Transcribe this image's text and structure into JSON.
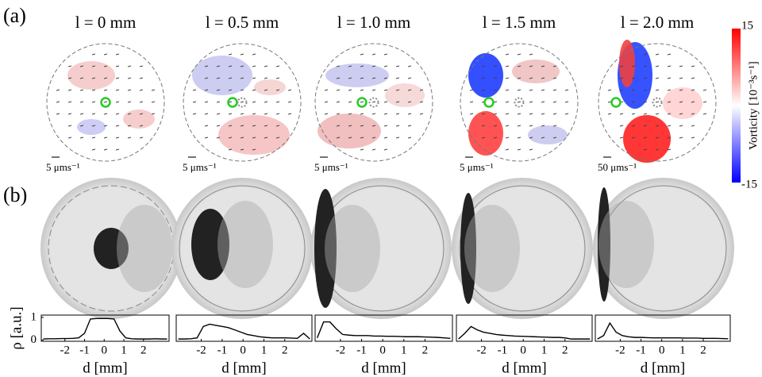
{
  "panel_labels": [
    "(a)",
    "(b)"
  ],
  "vorticity_maps": [
    {
      "title": "l = 0 mm",
      "scale_label": "5 μms⁻¹"
    },
    {
      "title": "l = 0.5 mm",
      "scale_label": "5 μms⁻¹"
    },
    {
      "title": "l = 1.0 mm",
      "scale_label": "5 μms⁻¹"
    },
    {
      "title": "l = 1.5 mm",
      "scale_label": "5 μms⁻¹"
    },
    {
      "title": "l = 2.0 mm",
      "scale_label": "50 μms⁻¹"
    }
  ],
  "colorbar": {
    "label": "Vorticity [10⁻³s⁻¹]",
    "lim": [
      -15,
      15
    ],
    "ticks": [
      15,
      -15
    ]
  },
  "chart_data": [
    {
      "type": "line",
      "xlabel": "d [mm]",
      "ylabel": "ρ [a.u.]",
      "x": [
        -3.1,
        -2.8,
        -2.5,
        -2.2,
        -1.9,
        -1.6,
        -1.3,
        -1.0,
        -0.7,
        -0.4,
        -0.1,
        0.2,
        0.5,
        0.8,
        1.1,
        1.4,
        1.7,
        2.0,
        2.3,
        2.6,
        2.9,
        3.2
      ],
      "series": [
        {
          "color": "#000000",
          "values": [
            0.05,
            0.06,
            0.06,
            0.07,
            0.07,
            0.08,
            0.1,
            0.3,
            0.93,
            0.95,
            0.95,
            0.95,
            0.93,
            0.4,
            0.1,
            0.06,
            0.05,
            0.05,
            0.05,
            0.06,
            0.05,
            0.05
          ]
        }
      ],
      "xlim": [
        -3.2,
        3.3
      ],
      "ylim": [
        -0.05,
        1.1
      ],
      "xticks": [
        -2,
        -1,
        0,
        1,
        2
      ],
      "yticks": [
        0,
        1
      ]
    },
    {
      "type": "line",
      "xlabel": "d [mm]",
      "x": [
        -3.1,
        -2.8,
        -2.5,
        -2.2,
        -1.9,
        -1.6,
        -1.3,
        -1.0,
        -0.7,
        -0.4,
        -0.1,
        0.2,
        0.5,
        0.8,
        1.1,
        1.4,
        1.7,
        2.0,
        2.3,
        2.6,
        2.9,
        3.2
      ],
      "series": [
        {
          "color": "#000000",
          "values": [
            0.05,
            0.05,
            0.06,
            0.1,
            0.6,
            0.7,
            0.65,
            0.6,
            0.55,
            0.45,
            0.35,
            0.25,
            0.2,
            0.15,
            0.12,
            0.1,
            0.1,
            0.1,
            0.09,
            0.08,
            0.3,
            0.05
          ]
        }
      ],
      "xlim": [
        -3.2,
        3.3
      ],
      "ylim": [
        -0.05,
        1.1
      ],
      "xticks": [
        -2,
        -1,
        0,
        1,
        2
      ]
    },
    {
      "type": "line",
      "xlabel": "d [mm]",
      "x": [
        -3.1,
        -2.8,
        -2.5,
        -2.2,
        -1.9,
        -1.6,
        -1.3,
        -1.0,
        -0.7,
        -0.4,
        -0.1,
        0.2,
        0.5,
        0.8,
        1.1,
        1.4,
        1.7,
        2.0,
        2.3,
        2.6,
        2.9,
        3.2
      ],
      "series": [
        {
          "color": "#000000",
          "values": [
            0.1,
            0.8,
            0.8,
            0.5,
            0.25,
            0.22,
            0.2,
            0.2,
            0.2,
            0.18,
            0.18,
            0.17,
            0.17,
            0.16,
            0.15,
            0.15,
            0.15,
            0.14,
            0.13,
            0.12,
            0.1,
            0.08
          ]
        }
      ],
      "xlim": [
        -3.2,
        3.3
      ],
      "ylim": [
        -0.05,
        1.1
      ],
      "xticks": [
        -2,
        -1,
        0,
        1,
        2
      ]
    },
    {
      "type": "line",
      "xlabel": "d [mm]",
      "x": [
        -3.1,
        -2.8,
        -2.5,
        -2.2,
        -1.9,
        -1.6,
        -1.3,
        -1.0,
        -0.7,
        -0.4,
        -0.1,
        0.2,
        0.5,
        0.8,
        1.1,
        1.4,
        1.7,
        2.0,
        2.3,
        2.6,
        2.9,
        3.2
      ],
      "series": [
        {
          "color": "#000000",
          "values": [
            0.05,
            0.3,
            0.6,
            0.45,
            0.35,
            0.3,
            0.25,
            0.22,
            0.2,
            0.18,
            0.17,
            0.16,
            0.15,
            0.14,
            0.13,
            0.12,
            0.12,
            0.1,
            0.05,
            0.05,
            0.05,
            0.05
          ]
        }
      ],
      "xlim": [
        -3.2,
        3.3
      ],
      "ylim": [
        -0.05,
        1.1
      ],
      "xticks": [
        -2,
        -1,
        0,
        1,
        2
      ]
    },
    {
      "type": "line",
      "xlabel": "d [mm]",
      "x": [
        -3.1,
        -2.8,
        -2.5,
        -2.2,
        -1.9,
        -1.6,
        -1.3,
        -1.0,
        -0.7,
        -0.4,
        -0.1,
        0.2,
        0.5,
        0.8,
        1.1,
        1.4,
        1.7,
        2.0,
        2.3,
        2.6,
        2.9,
        3.2
      ],
      "series": [
        {
          "color": "#000000",
          "values": [
            0.05,
            0.2,
            0.75,
            0.35,
            0.2,
            0.15,
            0.12,
            0.12,
            0.11,
            0.1,
            0.1,
            0.1,
            0.1,
            0.1,
            0.09,
            0.09,
            0.09,
            0.08,
            0.08,
            0.08,
            0.07,
            0.06
          ]
        }
      ],
      "xlim": [
        -3.2,
        3.3
      ],
      "ylim": [
        -0.05,
        1.1
      ],
      "xticks": [
        -2,
        -1,
        0,
        1,
        2
      ]
    }
  ]
}
